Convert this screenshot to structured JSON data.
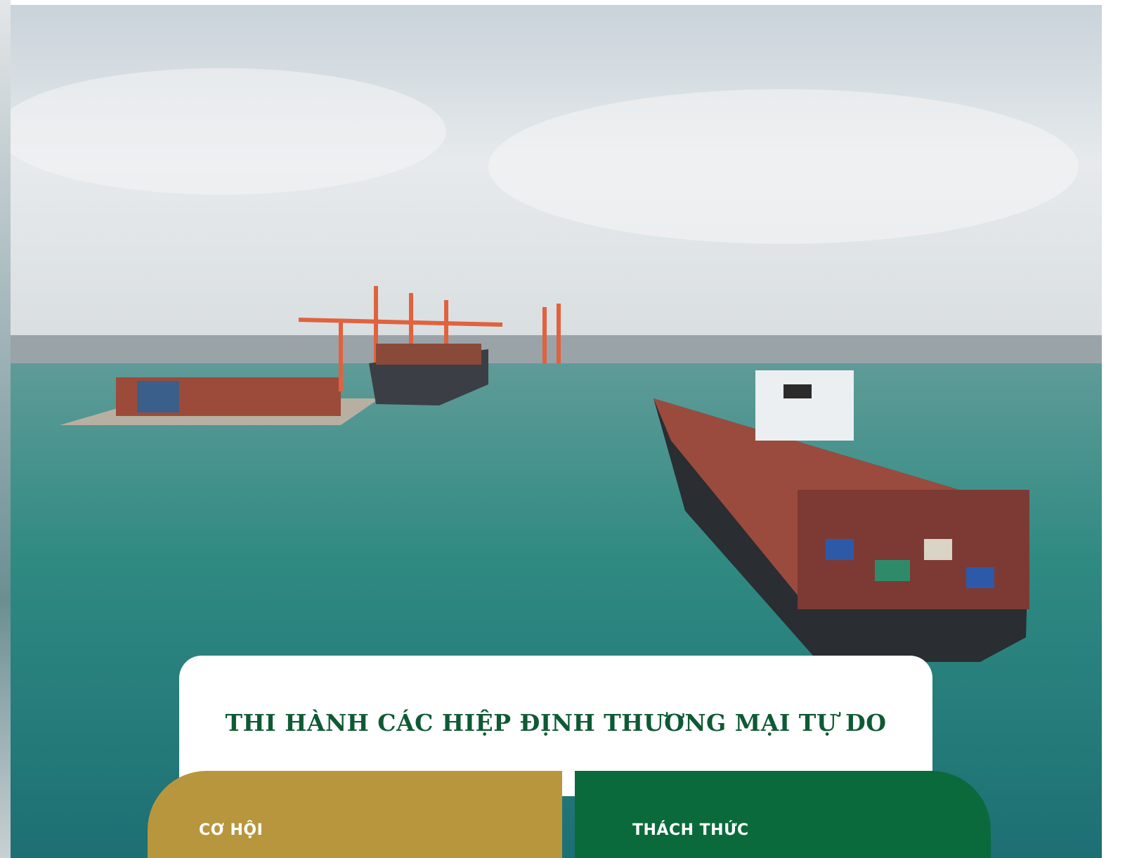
{
  "header": {
    "title": "THI HÀNH CÁC HIỆP ĐỊNH THƯƠNG MẠI TỰ DO"
  },
  "cards": [
    {
      "label": "CƠ HỘI"
    },
    {
      "label": "THÁCH THỨC"
    }
  ]
}
